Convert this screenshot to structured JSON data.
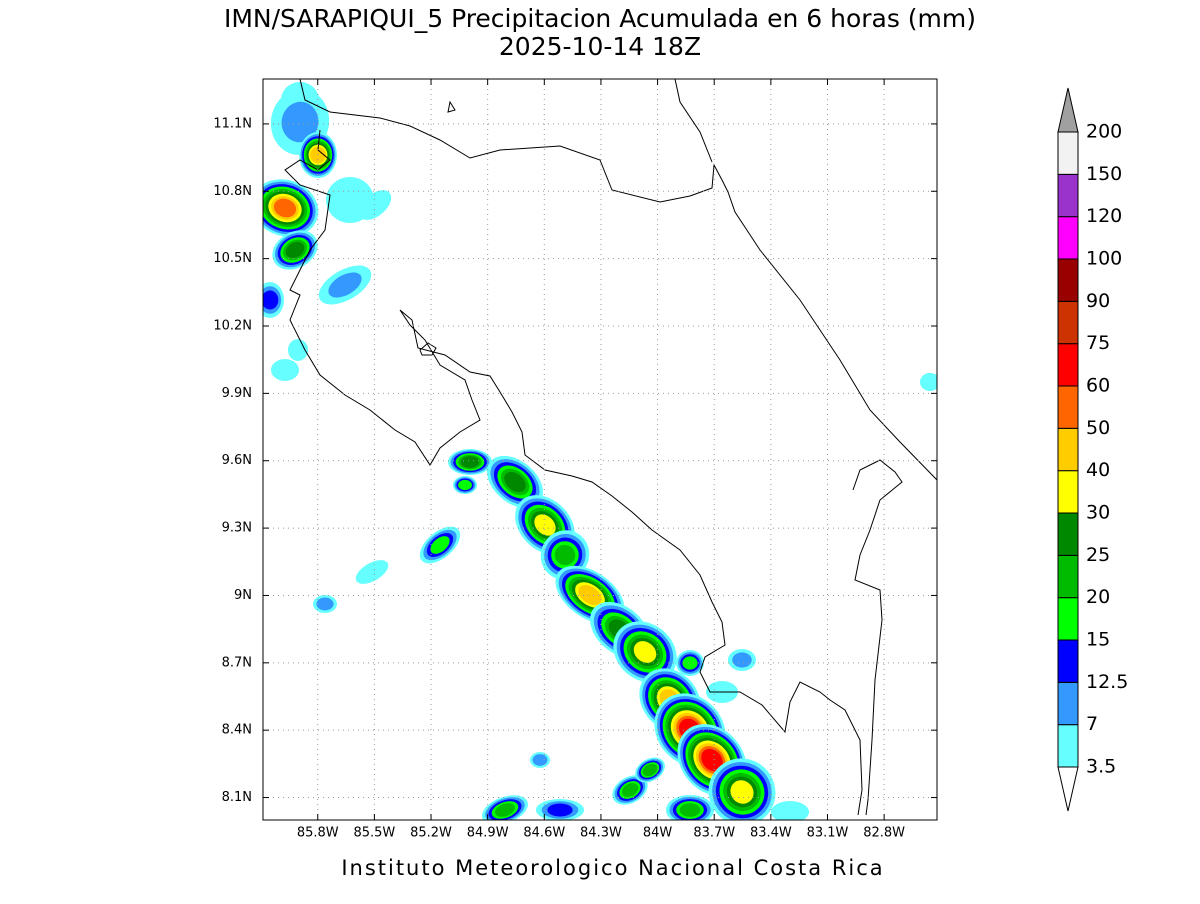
{
  "title": "IMN/SARAPIQUI_5 Precipitacion Acumulada en 6 horas (mm)",
  "subtitle": "2025-10-14 18Z",
  "map": {
    "xlim": [
      -86.09,
      -82.52
    ],
    "ylim": [
      8.0,
      11.3
    ],
    "grid": true,
    "xticks": [
      {
        "value": -85.8,
        "label": "85.8W"
      },
      {
        "value": -85.5,
        "label": "85.5W"
      },
      {
        "value": -85.2,
        "label": "85.2W"
      },
      {
        "value": -84.9,
        "label": "84.9W"
      },
      {
        "value": -84.6,
        "label": "84.6W"
      },
      {
        "value": -84.3,
        "label": "84.3W"
      },
      {
        "value": -84,
        "label": "84W"
      },
      {
        "value": -83.7,
        "label": "83.7W"
      },
      {
        "value": -83.4,
        "label": "83.4W"
      },
      {
        "value": -83.1,
        "label": "83.1W"
      },
      {
        "value": -82.8,
        "label": "82.8W"
      }
    ],
    "yticks": [
      {
        "value": 8.1,
        "label": "8.1N"
      },
      {
        "value": 8.4,
        "label": "8.4N"
      },
      {
        "value": 8.7,
        "label": "8.7N"
      },
      {
        "value": 9,
        "label": "9N"
      },
      {
        "value": 9.3,
        "label": "9.3N"
      },
      {
        "value": 9.6,
        "label": "9.6N"
      },
      {
        "value": 9.9,
        "label": "9.9N"
      },
      {
        "value": 10.2,
        "label": "10.2N"
      },
      {
        "value": 10.5,
        "label": "10.5N"
      },
      {
        "value": 10.8,
        "label": "10.8N"
      },
      {
        "value": 11.1,
        "label": "11.1N"
      }
    ]
  },
  "colorbar": {
    "levels": [
      3.5,
      7,
      12.5,
      15,
      20,
      25,
      30,
      40,
      50,
      60,
      75,
      90,
      100,
      120,
      150,
      200
    ],
    "colors": [
      "#66ffff",
      "#3399ff",
      "#0000ff",
      "#00ff00",
      "#00bb00",
      "#008800",
      "#ffff00",
      "#ffcc00",
      "#ff6600",
      "#ff0000",
      "#cc3300",
      "#990000",
      "#ff00ff",
      "#9933cc",
      "#f2f2f2"
    ],
    "under_color": "#ffffff",
    "over_color": "#a0a0a0"
  },
  "footer": "Instituto Meteorologico Nacional Costa Rica"
}
